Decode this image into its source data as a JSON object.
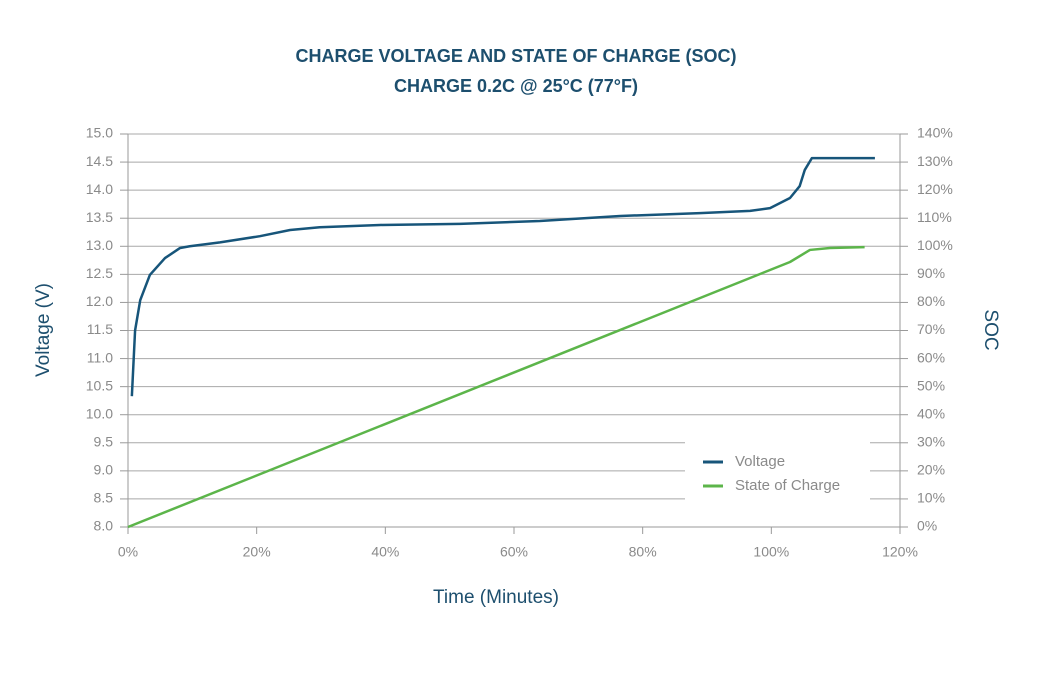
{
  "chart_data": {
    "type": "line",
    "title": "CHARGE VOLTAGE AND STATE OF CHARGE (SOC)",
    "subtitle": "CHARGE 0.2C @ 25°C (77°F)",
    "x_label": "Time (Minutes)",
    "y_label": "Voltage (V)",
    "y2_label": "SOC",
    "xlim": [
      0,
      120
    ],
    "xticks": [
      {
        "value": 0,
        "label": "0%"
      },
      {
        "value": 20,
        "label": "20%"
      },
      {
        "value": 40,
        "label": "40%"
      },
      {
        "value": 60,
        "label": "60%"
      },
      {
        "value": 80,
        "label": "80%"
      },
      {
        "value": 100,
        "label": "100%"
      },
      {
        "value": 120,
        "label": "120%"
      }
    ],
    "ylim": [
      8,
      15
    ],
    "yticks": [
      {
        "value": 8,
        "label": "8.0"
      },
      {
        "value": 8.5,
        "label": "8.5"
      },
      {
        "value": 9,
        "label": "9.0"
      },
      {
        "value": 9.5,
        "label": "9.5"
      },
      {
        "value": 10,
        "label": "10.0"
      },
      {
        "value": 10.5,
        "label": "10.5"
      },
      {
        "value": 11,
        "label": "11.0"
      },
      {
        "value": 11.5,
        "label": "11.5"
      },
      {
        "value": 12,
        "label": "12.0"
      },
      {
        "value": 12.5,
        "label": "12.5"
      },
      {
        "value": 13,
        "label": "13.0"
      },
      {
        "value": 13.5,
        "label": "13.5"
      },
      {
        "value": 14,
        "label": "14.0"
      },
      {
        "value": 14.5,
        "label": "14.5"
      },
      {
        "value": 15,
        "label": "15.0"
      }
    ],
    "y2lim": [
      0,
      140
    ],
    "y2ticks": [
      {
        "value": 0,
        "label": "0%"
      },
      {
        "value": 10,
        "label": "10%"
      },
      {
        "value": 20,
        "label": "20%"
      },
      {
        "value": 30,
        "label": "30%"
      },
      {
        "value": 40,
        "label": "40%"
      },
      {
        "value": 50,
        "label": "50%"
      },
      {
        "value": 60,
        "label": "60%"
      },
      {
        "value": 70,
        "label": "70%"
      },
      {
        "value": 80,
        "label": "80%"
      },
      {
        "value": 90,
        "label": "90%"
      },
      {
        "value": 100,
        "label": "100%"
      },
      {
        "value": 110,
        "label": "110%"
      },
      {
        "value": 120,
        "label": "120%"
      },
      {
        "value": 130,
        "label": "130%"
      },
      {
        "value": 140,
        "label": "140%"
      }
    ],
    "grid": true,
    "legend": "lower right",
    "series": [
      {
        "name": "Voltage",
        "color": "#17557a",
        "x": [
          0.6,
          1.1,
          1.9,
          3.4,
          5.75,
          8.1,
          9.6,
          14.3,
          20.5,
          25.2,
          29.8,
          39.2,
          51.6,
          64.0,
          76.5,
          88.9,
          96.7,
          99.8,
          102.9,
          104.4,
          105.2,
          106.3,
          116.1
        ],
        "values": [
          10.33,
          11.5,
          12.04,
          12.49,
          12.79,
          12.97,
          13.0,
          13.07,
          13.18,
          13.29,
          13.34,
          13.38,
          13.4,
          13.45,
          13.54,
          13.59,
          13.63,
          13.68,
          13.86,
          14.07,
          14.36,
          14.57,
          14.57
        ]
      },
      {
        "name": "State of Charge",
        "color": "#5cb54a",
        "axis": "y2",
        "x": [
          0,
          102.9,
          106,
          109.1,
          114.5
        ],
        "values": [
          0,
          94.4,
          98.7,
          99.4,
          99.7
        ]
      }
    ]
  }
}
